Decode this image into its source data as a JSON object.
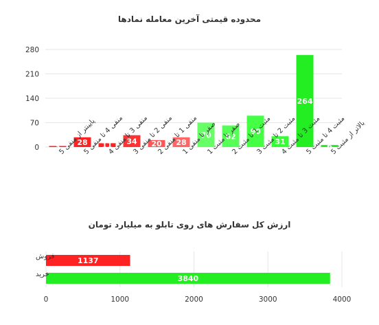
{
  "chart_data": [
    {
      "type": "bar",
      "title": "محدوده قیمتی آخرین معامله نمادها",
      "xlabel": "",
      "ylabel": "",
      "ylim": [
        0,
        280
      ],
      "yticks": [
        0,
        70,
        140,
        210,
        280
      ],
      "grid": true,
      "legend": "none",
      "categories": [
        "پایینتر از منفی 5",
        "منفی 4 تا منفی 5",
        "منفی 3 تا منفی 4",
        "منفی 2 تا منفی 3",
        "منفی 1 تا منفی 2",
        "صفر تا منفی 1",
        "صفر تا مثبت 1",
        "مثبت 1 تا مثبت 2",
        "مثبت 2 تا مثبت 3",
        "مثبت 3 تا مثبت 4",
        "مثبت 4 تا مثبت 5",
        "بالاتر از مثبت 5"
      ],
      "values": [
        3,
        28,
        11,
        34,
        20,
        28,
        70,
        62,
        90,
        31,
        264,
        6
      ],
      "colors": [
        "#ff2222",
        "#ff2222",
        "#ff2222",
        "#ff3333",
        "#ff5555",
        "#ff6666",
        "#66ff66",
        "#55ff55",
        "#44ff44",
        "#33ff33",
        "#22ee22",
        "#22ee22"
      ]
    },
    {
      "type": "bar",
      "orientation": "horizontal",
      "title": "ارزش کل سفارش های روی تابلو به میلیارد تومان",
      "xlabel": "",
      "ylabel": "",
      "xlim": [
        0,
        4000
      ],
      "xticks": [
        0,
        1000,
        2000,
        3000,
        4000
      ],
      "grid": true,
      "legend": "none",
      "categories": [
        "فروش",
        "خرید"
      ],
      "values": [
        1137,
        3840
      ],
      "colors": [
        "#ff2222",
        "#22ee22"
      ]
    }
  ]
}
